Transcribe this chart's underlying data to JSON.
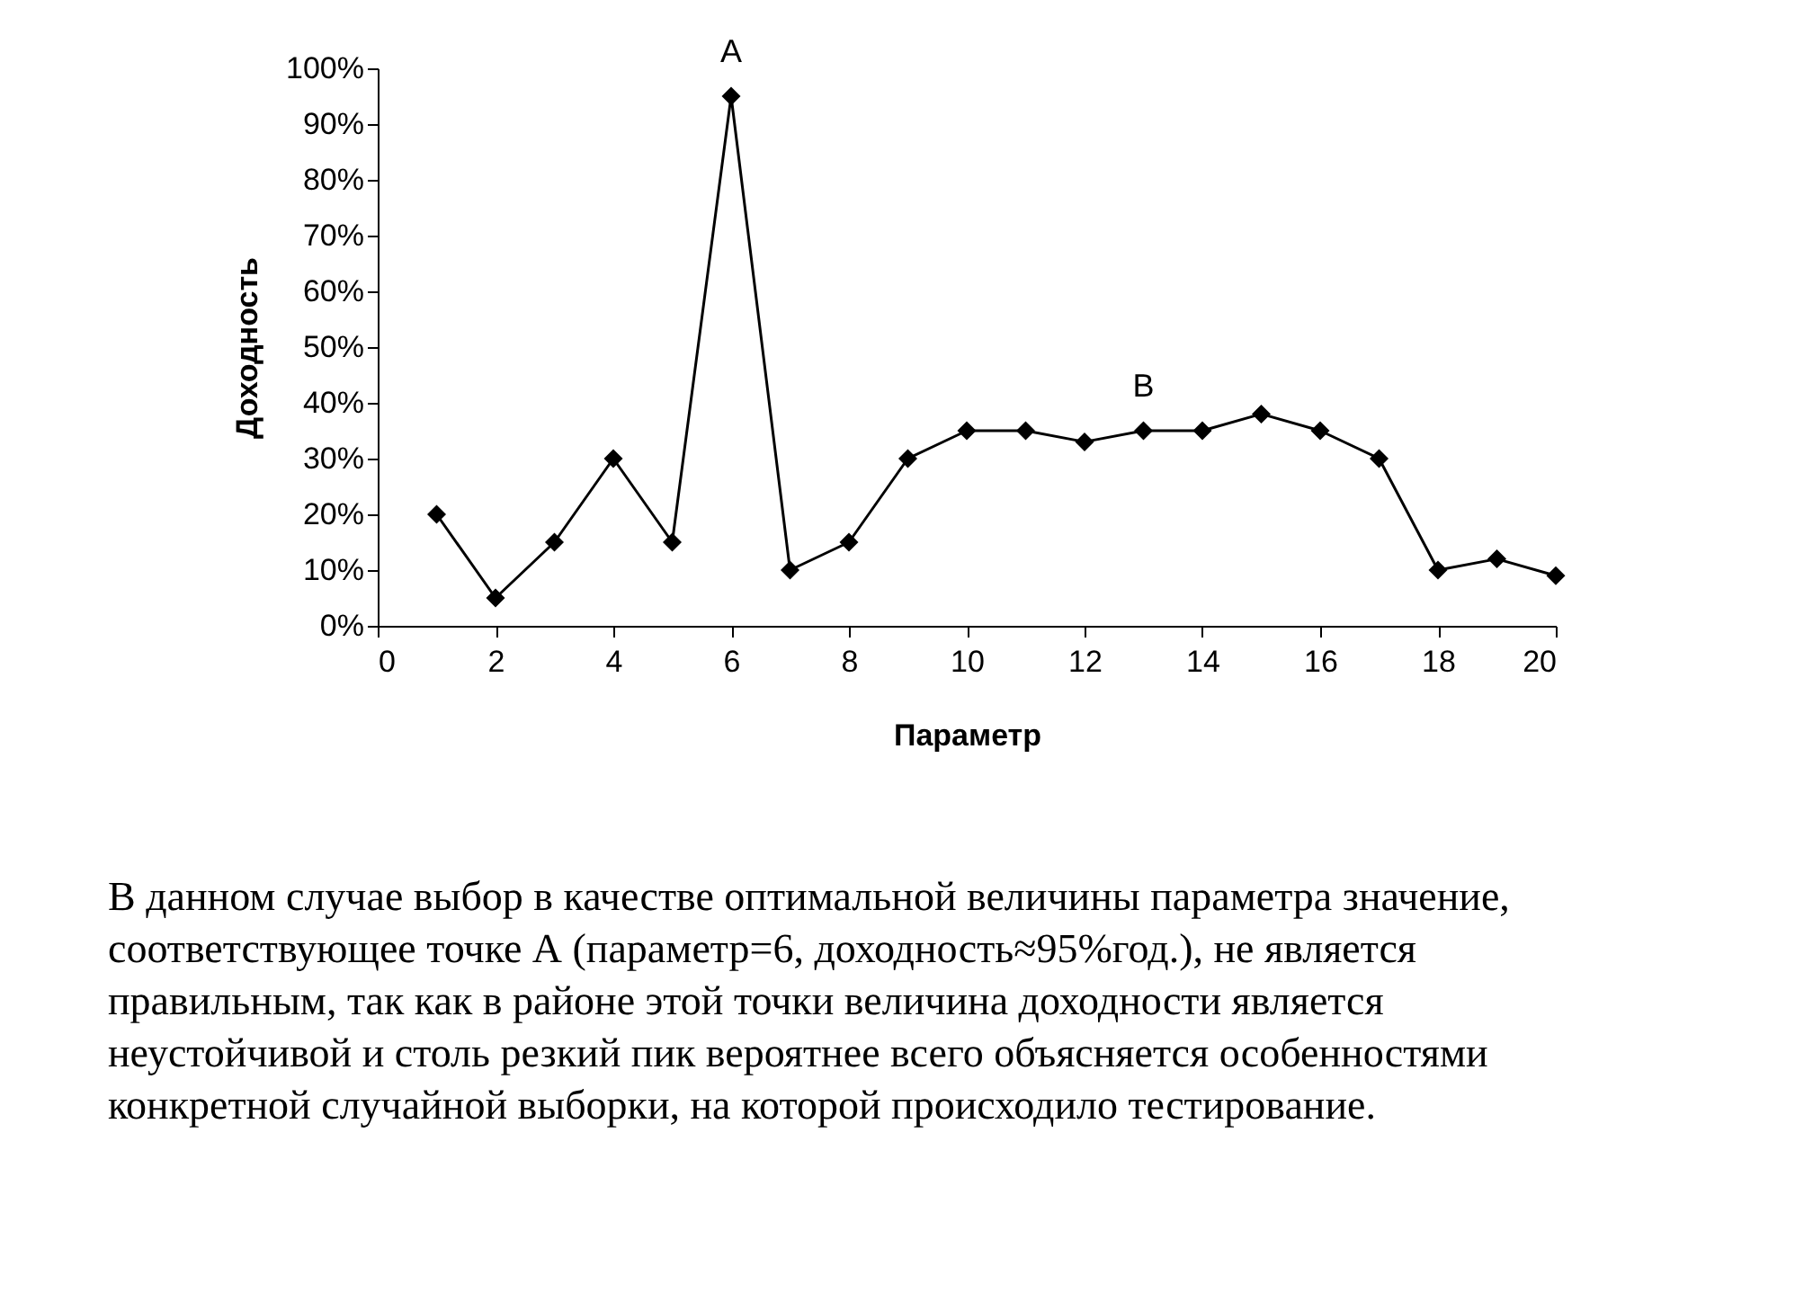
{
  "chart_data": {
    "type": "line",
    "xlabel": "Параметр",
    "ylabel": "Доходность",
    "x": [
      1,
      2,
      3,
      4,
      5,
      6,
      7,
      8,
      9,
      10,
      11,
      12,
      13,
      14,
      15,
      16,
      17,
      18,
      19,
      20
    ],
    "series": [
      {
        "color": "#000000",
        "values": [
          20,
          5,
          15,
          30,
          15,
          95,
          10,
          15,
          30,
          35,
          35,
          33,
          35,
          35,
          38,
          35,
          30,
          10,
          12,
          9
        ]
      }
    ],
    "xlim": [
      0,
      20
    ],
    "xticks": [
      0,
      2,
      4,
      6,
      8,
      10,
      12,
      14,
      16,
      18,
      20
    ],
    "ylim": [
      0,
      100
    ],
    "yticks": [
      {
        "value": 0,
        "label": "0%"
      },
      {
        "value": 10,
        "label": "10%"
      },
      {
        "value": 20,
        "label": "20%"
      },
      {
        "value": 30,
        "label": "30%"
      },
      {
        "value": 40,
        "label": "40%"
      },
      {
        "value": 50,
        "label": "50%"
      },
      {
        "value": 60,
        "label": "60%"
      },
      {
        "value": 70,
        "label": "70%"
      },
      {
        "value": 80,
        "label": "80%"
      },
      {
        "value": 90,
        "label": "90%"
      },
      {
        "value": 100,
        "label": "100%"
      }
    ],
    "marker": "diamond",
    "grid": false,
    "line_style": "solid",
    "annotations": [
      {
        "text": "A",
        "x": 6,
        "y": 95
      },
      {
        "text": "B",
        "x": 13,
        "y": 35
      },
      "В данном случае выбор в качестве оптимальной величины параметра значение, соответствующее точке А (параметр=6, доходность≈95%год.), не является правильным, так как в районе этой точки величина доходности является неустойчивой и столь резкий пик вероятнее всего объясняется особенностями конкретной случайной выборки, на которой происходило тестирование."
    ]
  }
}
